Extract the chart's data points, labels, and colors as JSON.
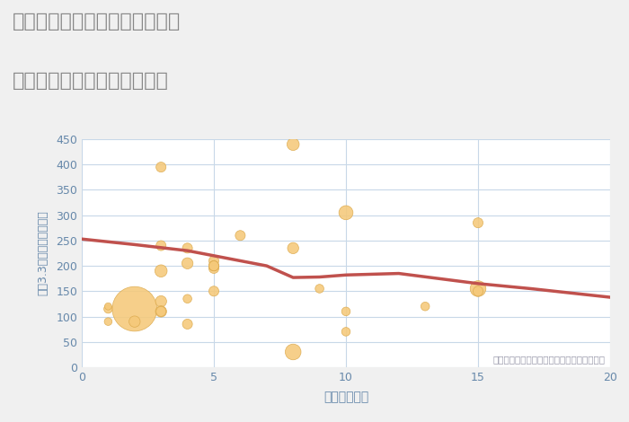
{
  "title_line1": "神奈川県横浜市中区日本大通の",
  "title_line2": "駅距離別中古マンション価格",
  "xlabel": "駅距離（分）",
  "ylabel": "坪（3.3㎡）単価（万円）",
  "background_color": "#f0f0f0",
  "plot_bg_color": "#ffffff",
  "grid_color": "#c8d8e8",
  "title_color": "#888888",
  "axis_label_color": "#6688aa",
  "tick_color": "#6688aa",
  "bubble_color": "#f5c97a",
  "bubble_edge_color": "#dba84a",
  "line_color": "#c0514d",
  "annotation_color": "#9999aa",
  "annotation_text": "円の大きさは、取引のあった物件面積を示す",
  "xlim": [
    0,
    20
  ],
  "ylim": [
    0,
    450
  ],
  "xticks": [
    0,
    5,
    10,
    15,
    20
  ],
  "yticks": [
    0,
    50,
    100,
    150,
    200,
    250,
    300,
    350,
    400,
    450
  ],
  "scatter_x": [
    1,
    1,
    1,
    2,
    2,
    3,
    3,
    3,
    3,
    3,
    3,
    4,
    4,
    4,
    4,
    5,
    5,
    5,
    5,
    5,
    5,
    6,
    8,
    8,
    8,
    9,
    10,
    10,
    10,
    13,
    15,
    15,
    15
  ],
  "scatter_y": [
    115,
    90,
    120,
    115,
    90,
    190,
    130,
    110,
    395,
    240,
    110,
    235,
    205,
    135,
    85,
    210,
    195,
    200,
    200,
    150,
    200,
    260,
    440,
    235,
    30,
    155,
    305,
    70,
    110,
    120,
    285,
    155,
    150
  ],
  "scatter_s": [
    15,
    12,
    10,
    400,
    25,
    30,
    25,
    25,
    20,
    20,
    20,
    20,
    25,
    15,
    20,
    20,
    20,
    20,
    20,
    20,
    20,
    20,
    30,
    25,
    50,
    15,
    40,
    15,
    15,
    15,
    20,
    50,
    20
  ],
  "trend_x": [
    0,
    2,
    4,
    7,
    8,
    9,
    10,
    12,
    15,
    17,
    20
  ],
  "trend_y": [
    253,
    242,
    230,
    200,
    177,
    178,
    182,
    185,
    165,
    155,
    138
  ]
}
